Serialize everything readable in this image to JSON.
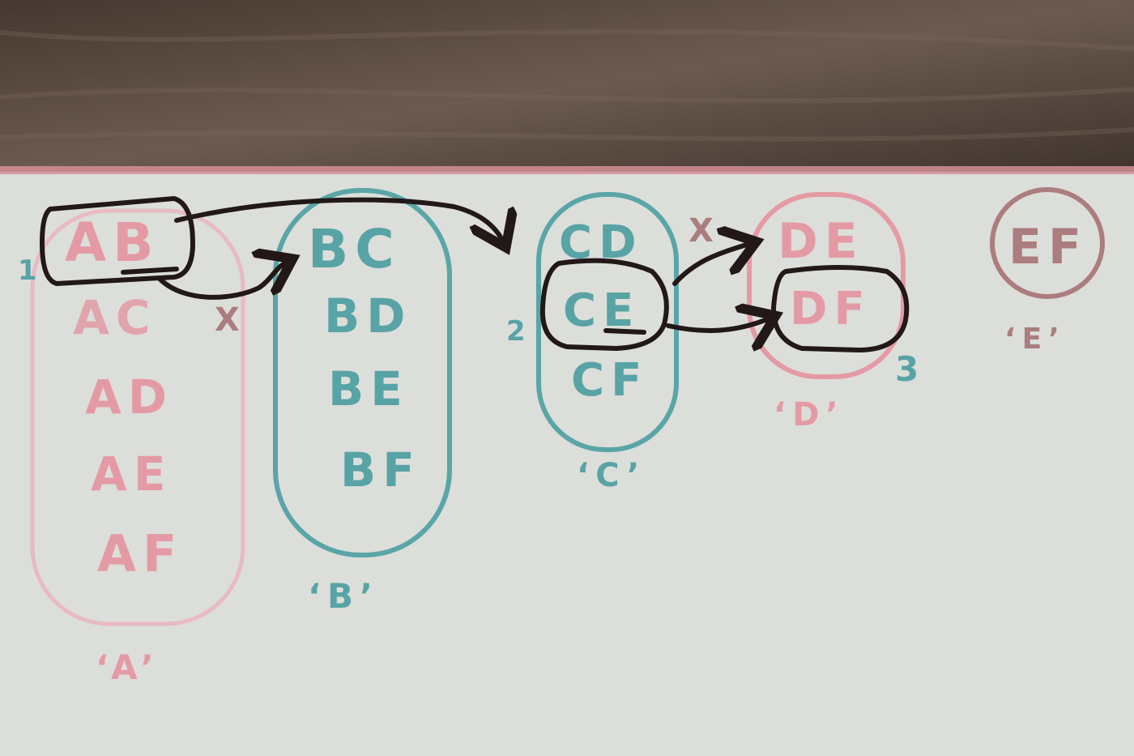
{
  "colors": {
    "table": "#5b4a40",
    "paper": "#dcdeda",
    "pink": "#e49aa4",
    "teal": "#58a3a5",
    "mauve": "#ab7d7e",
    "ink": "#221818"
  },
  "groups": {
    "a": {
      "caption": "‘A’",
      "number": "1",
      "pairs": [
        "AB",
        "AC",
        "AD",
        "AE",
        "AF"
      ],
      "cross": "X"
    },
    "b": {
      "caption": "‘B’",
      "pairs": [
        "BC",
        "BD",
        "BE",
        "BF"
      ]
    },
    "c": {
      "caption": "‘C’",
      "number": "2",
      "pairs": [
        "CD",
        "CE",
        "CF"
      ]
    },
    "d": {
      "caption": "‘D’",
      "number": "3",
      "pairs": [
        "DE",
        "DF"
      ],
      "cross": "X"
    },
    "e": {
      "caption": "‘E’",
      "pairs": [
        "EF"
      ]
    }
  }
}
